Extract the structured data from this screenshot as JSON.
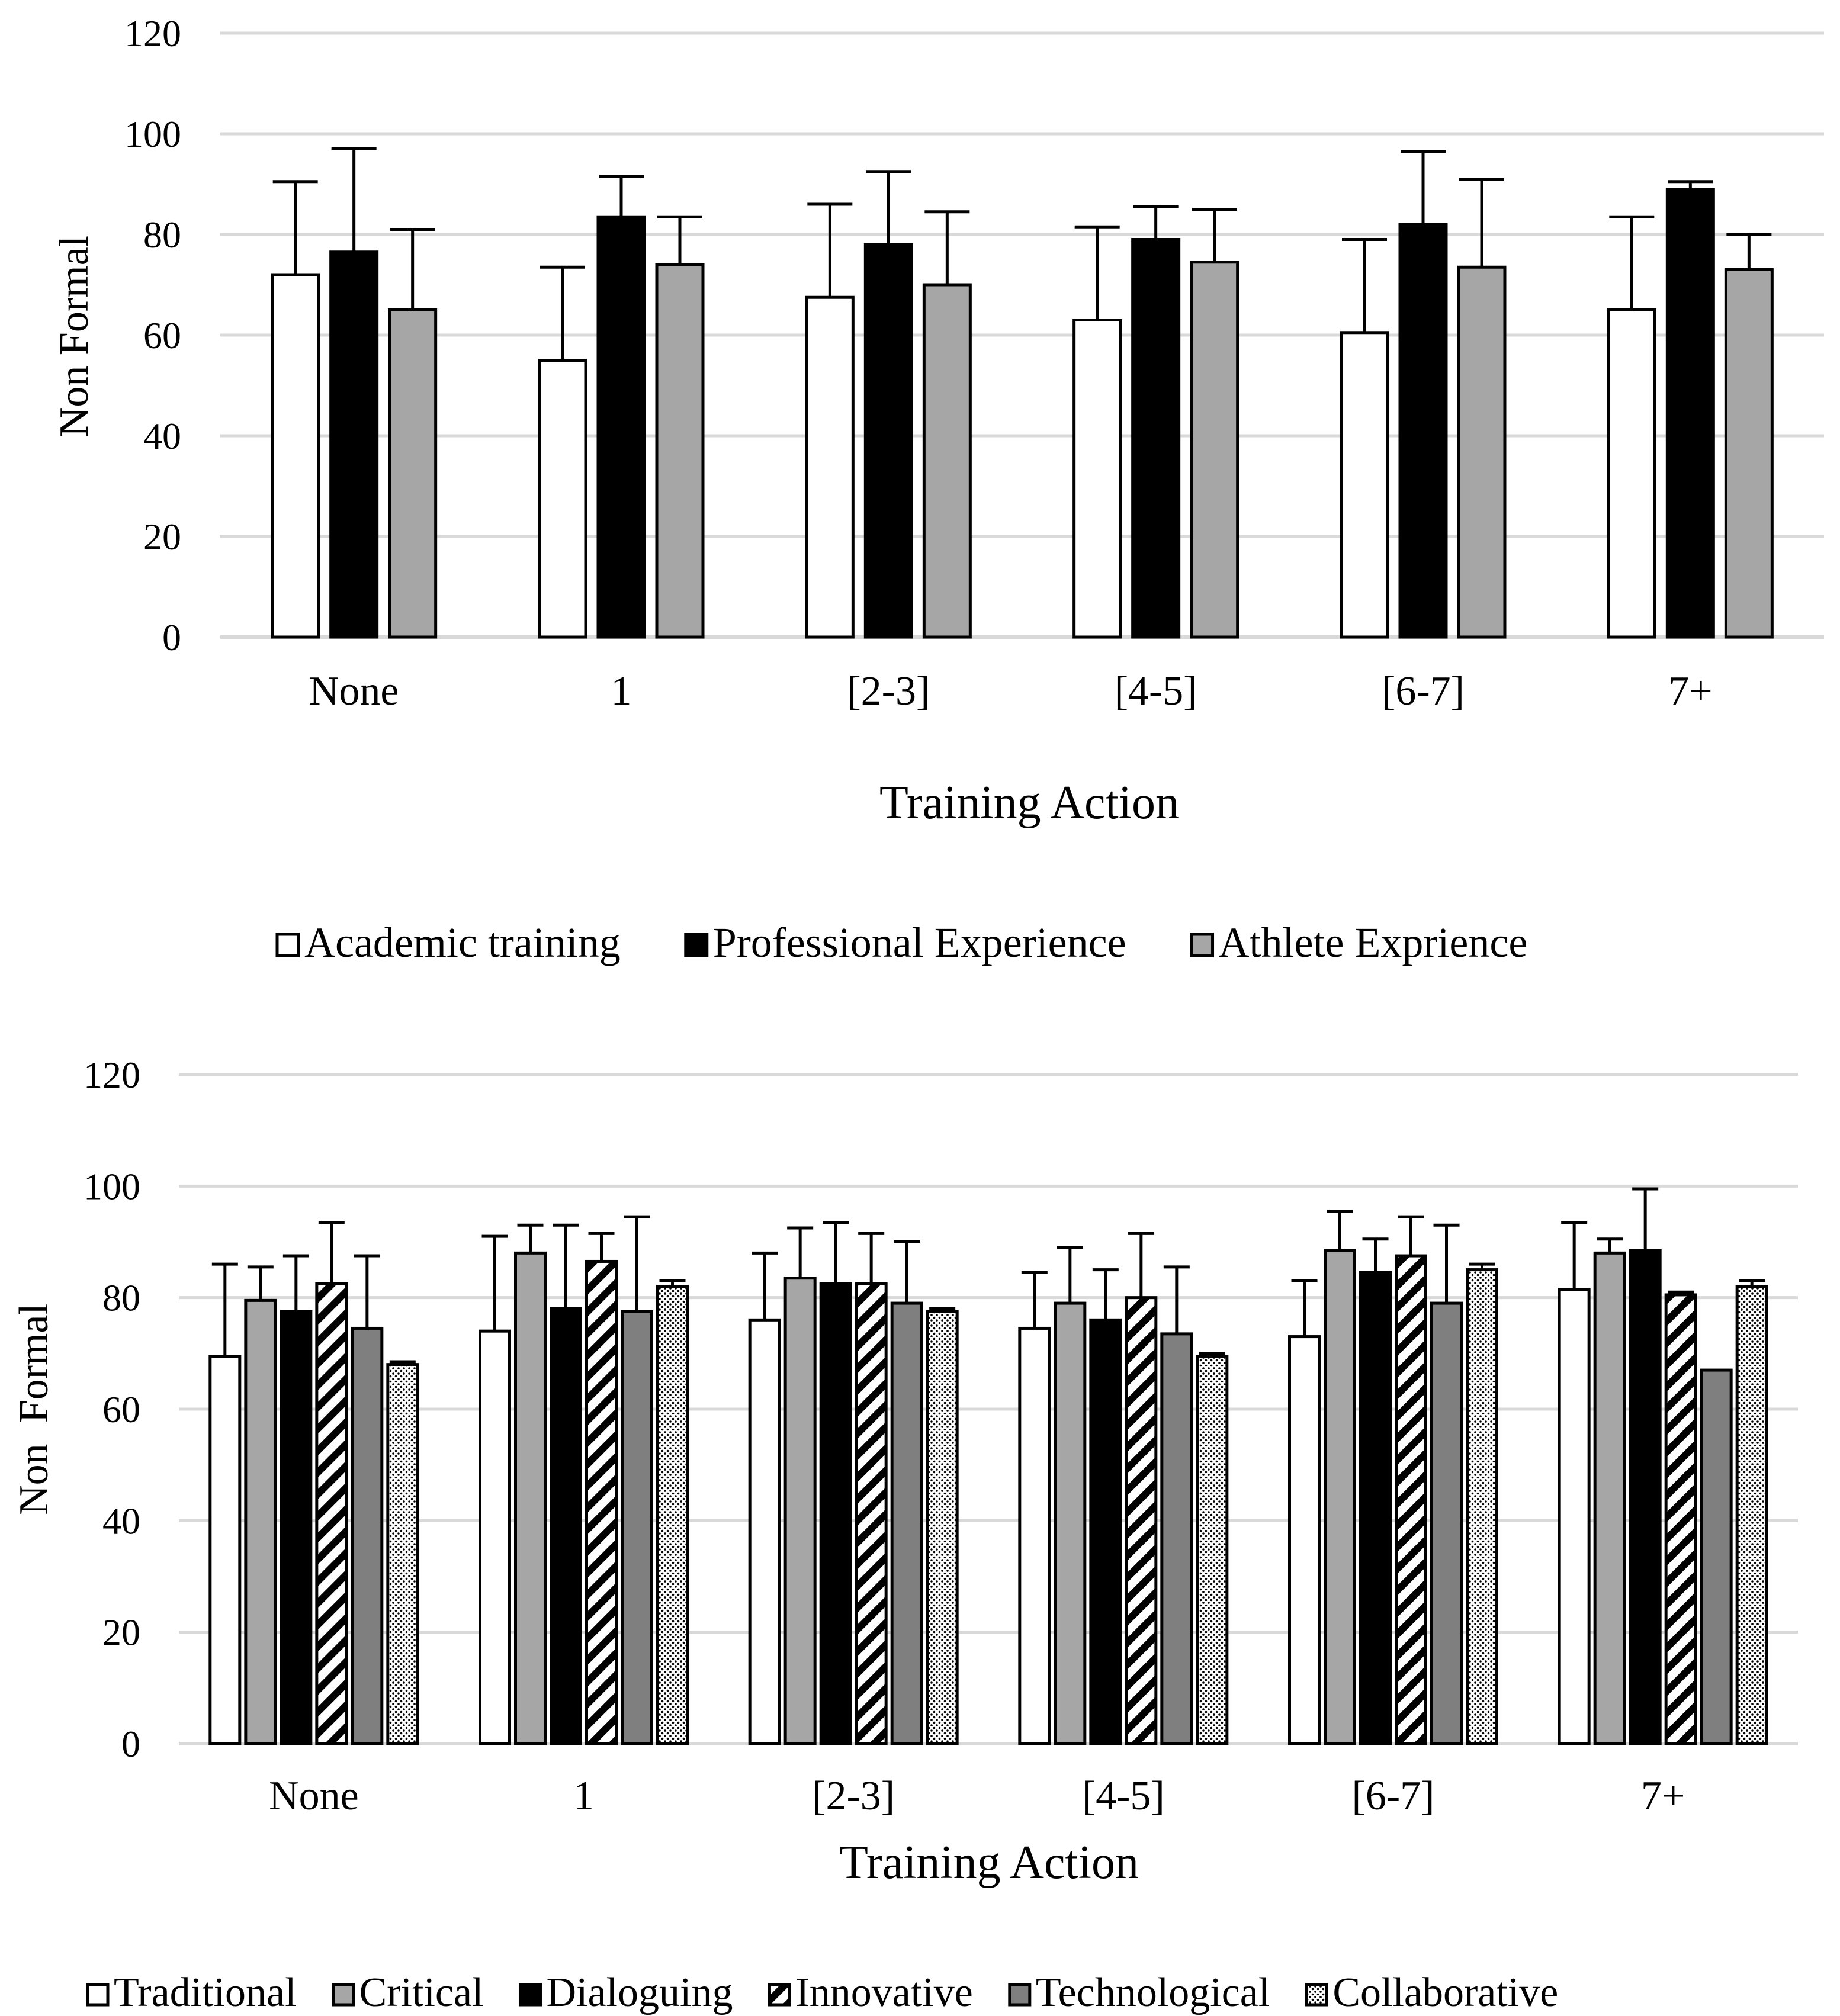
{
  "chart_data": [
    {
      "type": "bar",
      "title": "",
      "xlabel": "Training Action",
      "ylabel": "Non Formal",
      "ylim": [
        0,
        120
      ],
      "yticks": [
        "0",
        "20",
        "40",
        "60",
        "80",
        "100",
        "120"
      ],
      "categories": [
        "None",
        "1",
        "[2-3]",
        "[4-5]",
        "[6-7]",
        "7+"
      ],
      "grid": true,
      "legend_position": "bottom",
      "series": [
        {
          "name": "Academic training",
          "pattern": "white",
          "values": [
            72,
            55,
            67.5,
            63,
            60.5,
            65
          ],
          "error_plus": [
            18.5,
            18.5,
            18.5,
            18.5,
            18.5,
            18.5
          ]
        },
        {
          "name": "Professional Experience",
          "pattern": "black",
          "values": [
            76.5,
            83.5,
            78,
            79,
            82,
            89
          ],
          "error_plus": [
            20.5,
            8,
            14.5,
            6.5,
            14.5,
            1.5
          ]
        },
        {
          "name": "Athlete Exprience",
          "pattern": "gray",
          "values": [
            65,
            74,
            70,
            74.5,
            73.5,
            73
          ],
          "error_plus": [
            16,
            9.5,
            14.5,
            10.5,
            17.5,
            7
          ]
        }
      ]
    },
    {
      "type": "bar",
      "title": "",
      "xlabel": "Training Action",
      "ylabel": "Non  Formal",
      "ylim": [
        0,
        120
      ],
      "yticks": [
        "0",
        "20",
        "40",
        "60",
        "80",
        "100",
        "120"
      ],
      "categories": [
        "None",
        "1",
        "[2-3]",
        "[4-5]",
        "[6-7]",
        "7+"
      ],
      "grid": true,
      "legend_position": "bottom",
      "series": [
        {
          "name": "Traditional",
          "pattern": "white",
          "values": [
            69.5,
            74,
            76,
            74.5,
            73,
            81.5
          ],
          "error_plus": [
            16.5,
            17,
            12,
            10,
            10,
            12
          ]
        },
        {
          "name": "Critical",
          "pattern": "gray",
          "values": [
            79.5,
            88,
            83.5,
            79,
            88.5,
            88
          ],
          "error_plus": [
            6,
            5,
            9,
            10,
            7,
            2.5
          ]
        },
        {
          "name": "Dialoguing",
          "pattern": "black",
          "values": [
            77.5,
            78,
            82.5,
            76,
            84.5,
            88.5
          ],
          "error_plus": [
            10,
            15,
            11,
            9,
            6,
            11
          ]
        },
        {
          "name": "Innovative",
          "pattern": "hatch",
          "values": [
            82.5,
            86.5,
            82.5,
            80,
            87.5,
            80.5
          ],
          "error_plus": [
            11,
            5,
            9,
            11.5,
            7,
            0.5
          ]
        },
        {
          "name": "Technological",
          "pattern": "darkgray",
          "values": [
            74.5,
            77.5,
            79,
            73.5,
            79,
            67
          ],
          "error_plus": [
            13,
            17,
            11,
            12,
            14,
            0
          ]
        },
        {
          "name": "Collaborative",
          "pattern": "dots",
          "values": [
            68,
            82,
            77.5,
            69.5,
            85,
            82
          ],
          "error_plus": [
            0.5,
            1,
            0.5,
            0.5,
            1,
            1
          ]
        }
      ]
    }
  ]
}
